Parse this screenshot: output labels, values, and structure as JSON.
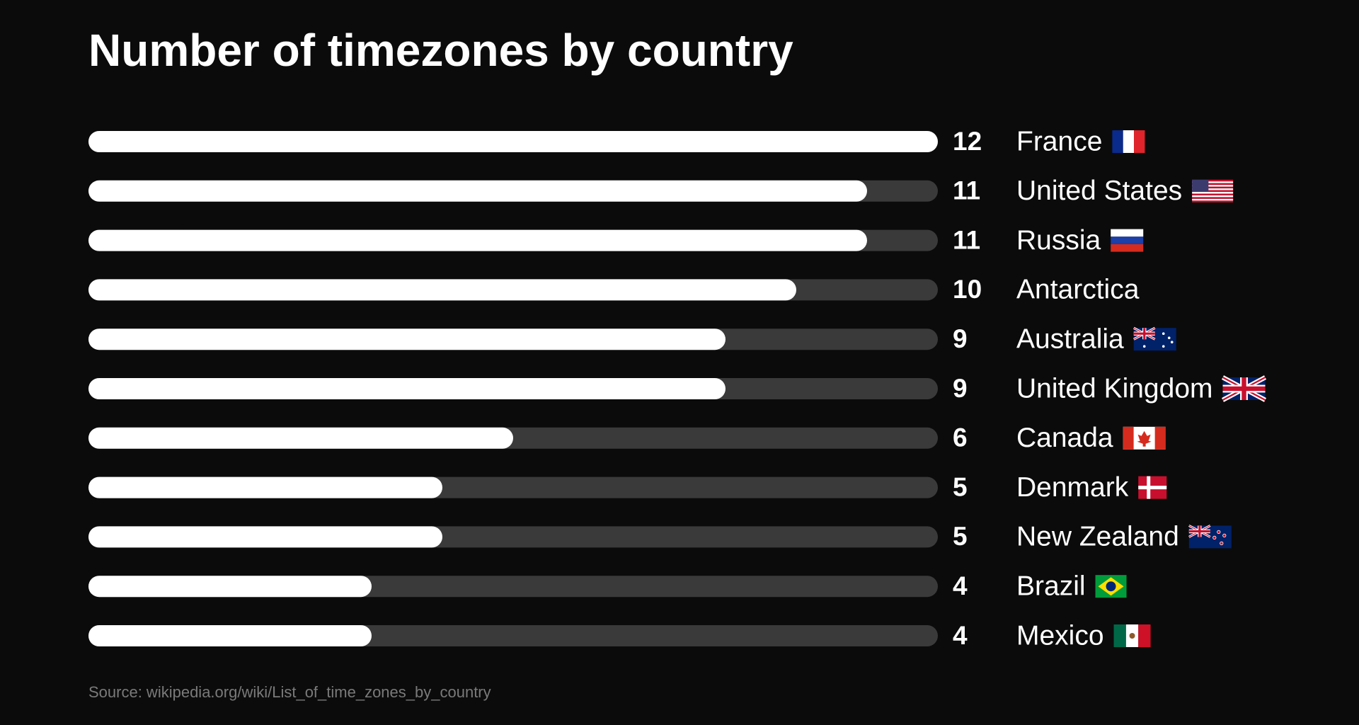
{
  "chart_data": {
    "type": "bar",
    "orientation": "horizontal",
    "title": "Number of timezones by country",
    "categories": [
      "France",
      "United States",
      "Russia",
      "Antarctica",
      "Australia",
      "United Kingdom",
      "Canada",
      "Denmark",
      "New Zealand",
      "Brazil",
      "Mexico"
    ],
    "values": [
      12,
      11,
      11,
      10,
      9,
      9,
      6,
      5,
      5,
      4,
      4
    ],
    "xlim": [
      0,
      12
    ],
    "color": "#ffffff",
    "track_color": "#3a3a3a",
    "source": "Source: wikipedia.org/wiki/List_of_time_zones_by_country"
  }
}
